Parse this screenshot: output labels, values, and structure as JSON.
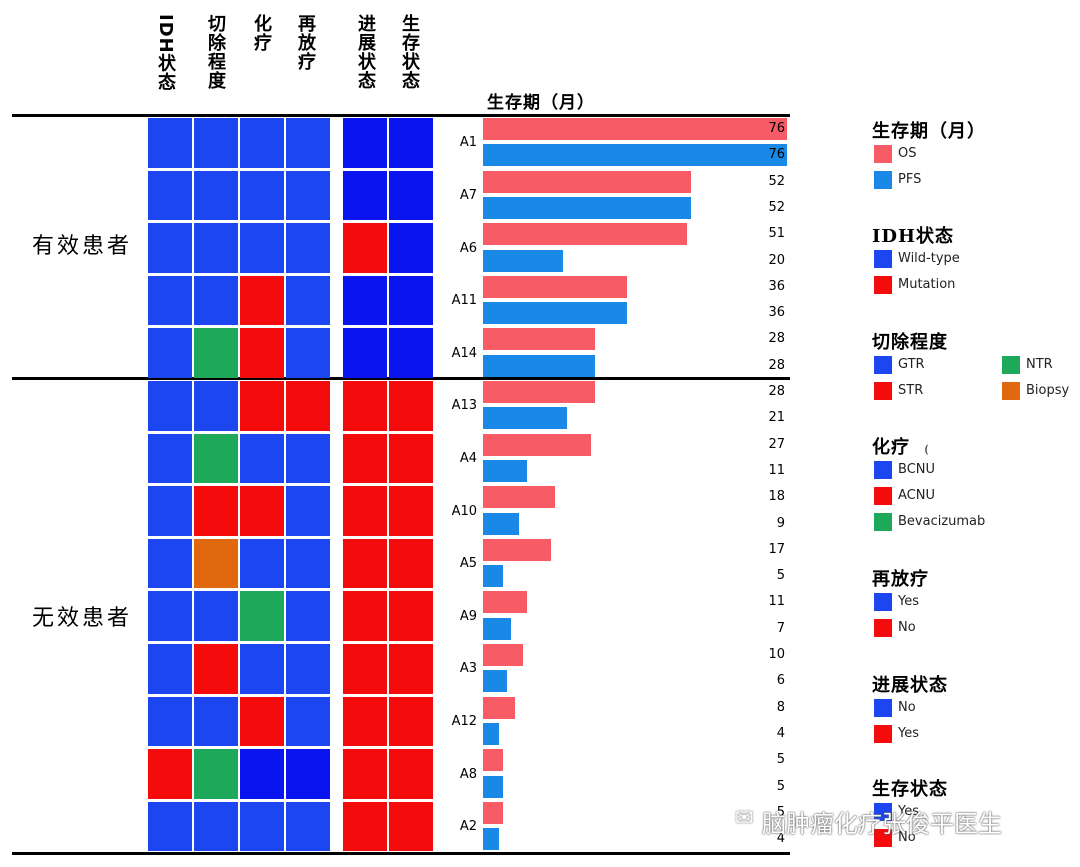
{
  "column_headers": [
    "IDH状态",
    "切除程度",
    "化疗",
    "再放疗",
    "进展状态",
    "生存状态"
  ],
  "groups": {
    "effective": "有效患者",
    "ineffective": "无效患者"
  },
  "colors": {
    "blue": "#1c46f0",
    "deep_blue": "#0a14f0",
    "red": "#f40c0c",
    "green": "#1ea85a",
    "orange": "#e0690f",
    "os": "#f75c66",
    "pfs": "#1a88e6"
  },
  "chart_data": {
    "type": "bar",
    "title": "生存期（月）",
    "orientation": "horizontal",
    "xlim": [
      0,
      76
    ],
    "categories": [
      "A1",
      "A7",
      "A6",
      "A11",
      "A14",
      "A13",
      "A4",
      "A10",
      "A5",
      "A9",
      "A3",
      "A12",
      "A8",
      "A2"
    ],
    "series": [
      {
        "name": "OS",
        "values": [
          76,
          52,
          51,
          36,
          28,
          28,
          27,
          18,
          17,
          11,
          10,
          8,
          5,
          5
        ]
      },
      {
        "name": "PFS",
        "values": [
          76,
          52,
          20,
          36,
          28,
          21,
          11,
          9,
          5,
          7,
          6,
          4,
          5,
          4
        ]
      }
    ],
    "value_labels": [
      [
        "76",
        "76"
      ],
      [
        "52",
        "52"
      ],
      [
        "51",
        "20"
      ],
      [
        "36",
        "36"
      ],
      [
        "28",
        "28"
      ],
      [
        "28",
        "21"
      ],
      [
        "27",
        "11"
      ],
      [
        "18",
        "9"
      ],
      [
        "17",
        "5"
      ],
      [
        "11",
        "7"
      ],
      [
        "10",
        "6"
      ],
      [
        "8",
        "4"
      ],
      [
        "5",
        "5"
      ],
      [
        "5",
        "4"
      ]
    ],
    "heatmap": {
      "columns": [
        "IDH状态",
        "切除程度",
        "化疗",
        "再放疗",
        "进展状态",
        "生存状态"
      ],
      "rows": [
        [
          "blue",
          "blue",
          "blue",
          "blue",
          "deep_blue",
          "deep_blue"
        ],
        [
          "blue",
          "blue",
          "blue",
          "blue",
          "deep_blue",
          "deep_blue"
        ],
        [
          "blue",
          "blue",
          "blue",
          "blue",
          "red",
          "deep_blue"
        ],
        [
          "blue",
          "blue",
          "red",
          "blue",
          "deep_blue",
          "deep_blue"
        ],
        [
          "blue",
          "green",
          "red",
          "blue",
          "deep_blue",
          "deep_blue"
        ],
        [
          "blue",
          "blue",
          "red",
          "red",
          "red",
          "red"
        ],
        [
          "blue",
          "green",
          "blue",
          "blue",
          "red",
          "red"
        ],
        [
          "blue",
          "red",
          "red",
          "blue",
          "red",
          "red"
        ],
        [
          "blue",
          "orange",
          "blue",
          "blue",
          "red",
          "red"
        ],
        [
          "blue",
          "blue",
          "green",
          "blue",
          "red",
          "red"
        ],
        [
          "blue",
          "red",
          "blue",
          "blue",
          "red",
          "red"
        ],
        [
          "blue",
          "blue",
          "red",
          "blue",
          "red",
          "red"
        ],
        [
          "red",
          "green",
          "deep_blue",
          "deep_blue",
          "red",
          "red"
        ],
        [
          "blue",
          "blue",
          "blue",
          "blue",
          "red",
          "red"
        ]
      ]
    }
  },
  "legend": [
    {
      "title": "生存期（月）",
      "items": [
        {
          "label": "OS",
          "color": "os"
        },
        {
          "label": "PFS",
          "color": "pfs"
        }
      ]
    },
    {
      "title": "IDH状态",
      "items": [
        {
          "label": "Wild-type",
          "color": "blue"
        },
        {
          "label": "Mutation",
          "color": "red"
        }
      ]
    },
    {
      "title": "切除程度",
      "items": [
        {
          "label": "GTR",
          "color": "blue"
        },
        {
          "label": "STR",
          "color": "red"
        },
        {
          "label": "NTR",
          "color": "green"
        },
        {
          "label": "Biopsy",
          "color": "orange"
        }
      ]
    },
    {
      "title": "化疗",
      "title_suffix": "(",
      "items": [
        {
          "label": "BCNU",
          "color": "blue"
        },
        {
          "label": "ACNU",
          "color": "red"
        },
        {
          "label": "Bevacizumab",
          "color": "green"
        }
      ]
    },
    {
      "title": "再放疗",
      "items": [
        {
          "label": "Yes",
          "color": "blue"
        },
        {
          "label": "No",
          "color": "red"
        }
      ]
    },
    {
      "title": "进展状态",
      "items": [
        {
          "label": "No",
          "color": "blue"
        },
        {
          "label": "Yes",
          "color": "red"
        }
      ]
    },
    {
      "title": "生存状态",
      "items": [
        {
          "label": "Yes",
          "color": "blue"
        },
        {
          "label": "No",
          "color": "red"
        }
      ]
    }
  ],
  "watermark": "脑肿瘤化疗张俊平医生"
}
